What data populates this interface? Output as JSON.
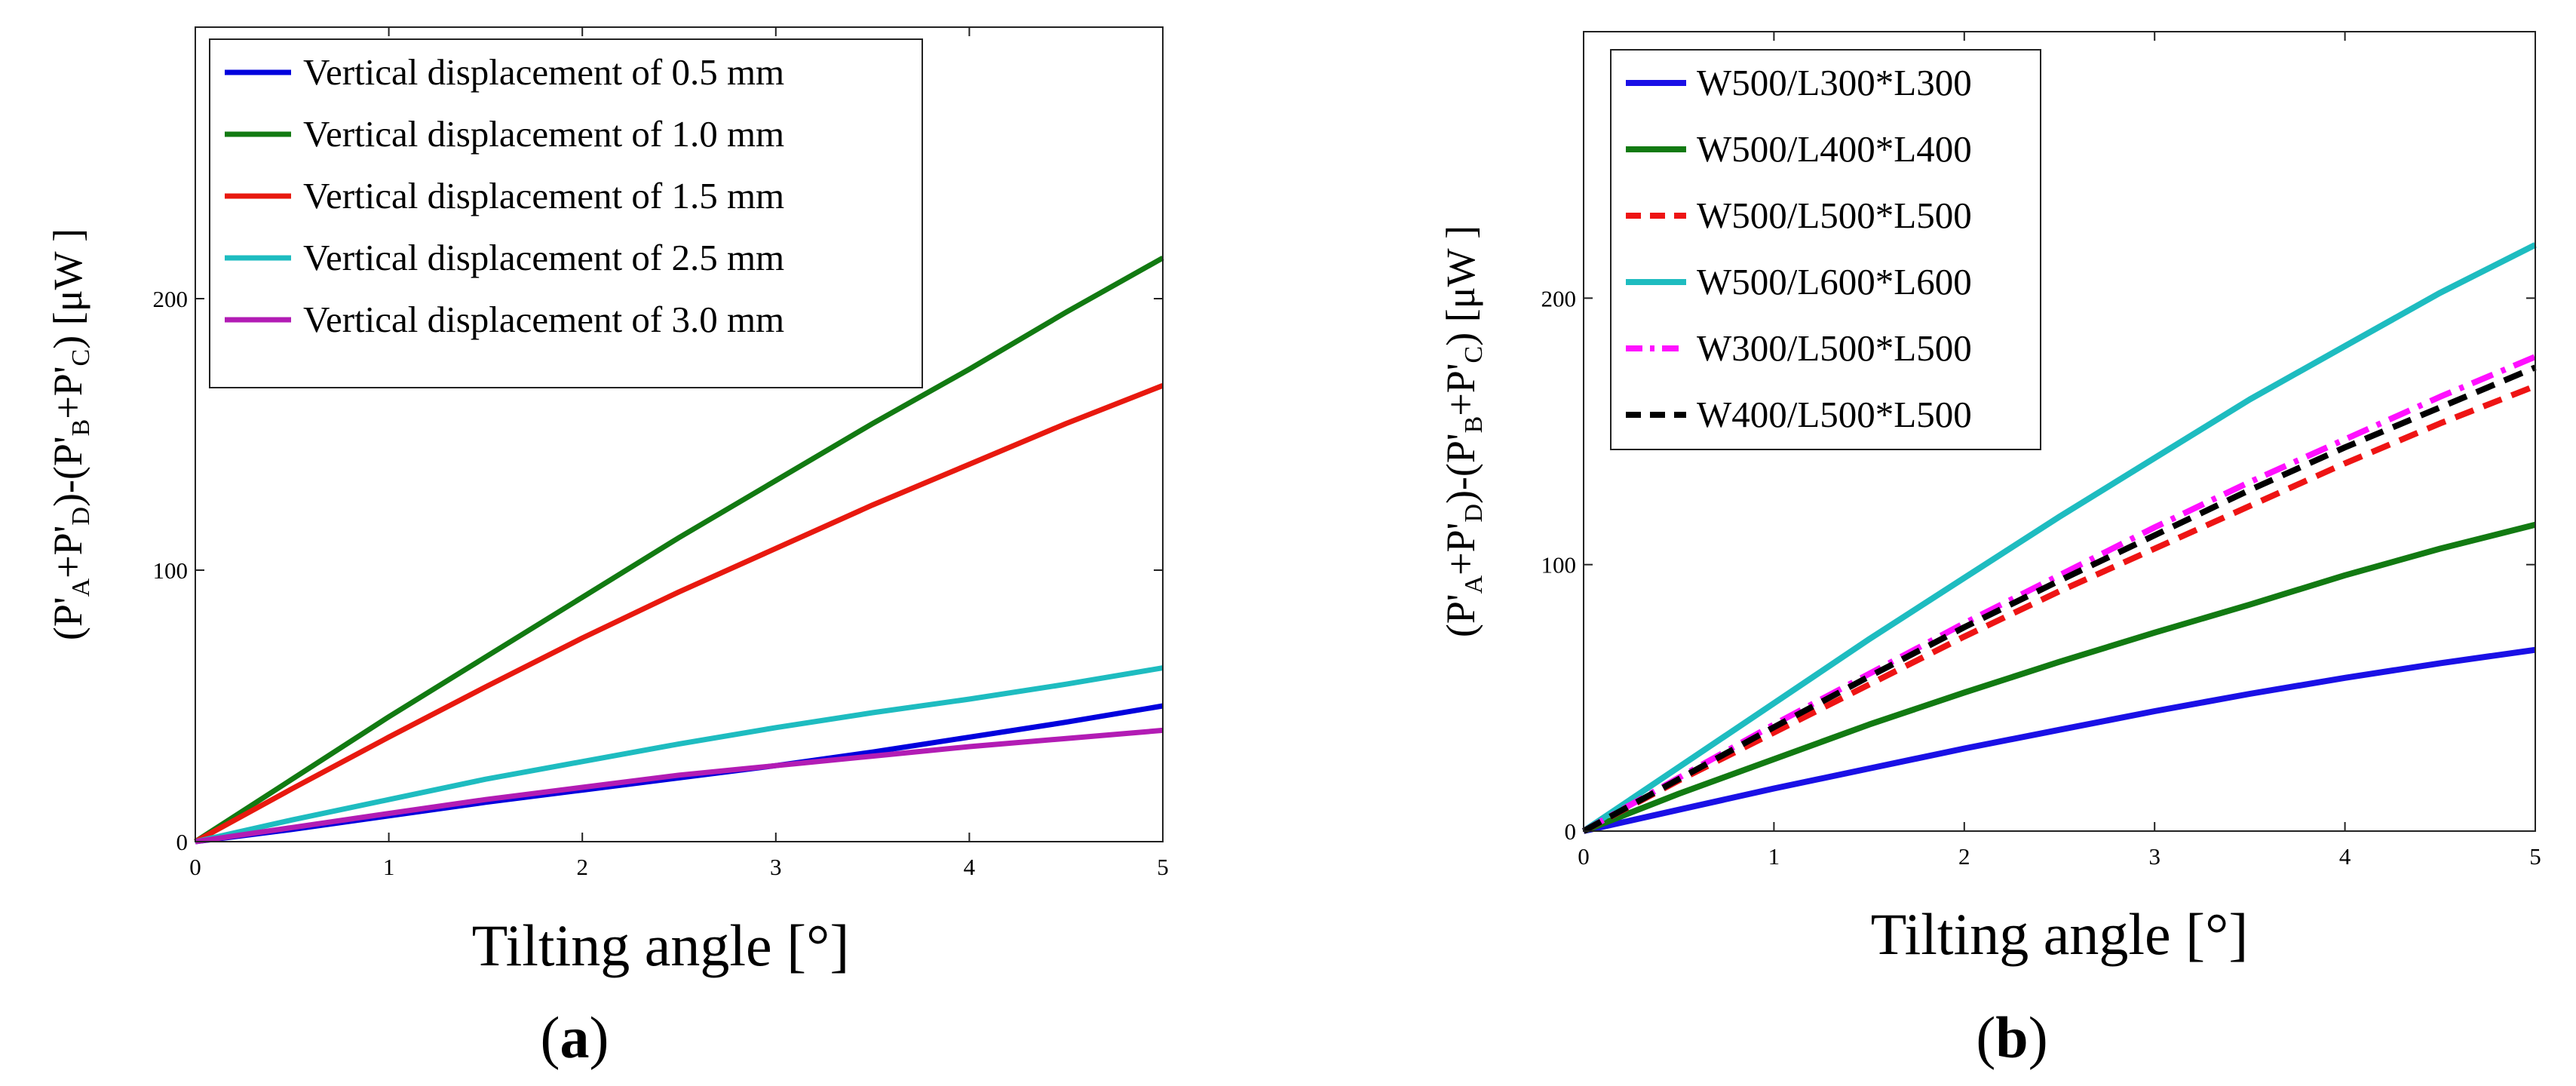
{
  "chart_data": [
    {
      "type": "line",
      "panel": "a",
      "xlabel": "Tilting angle [°]",
      "ylabel": {
        "open": "(P'",
        "a": "A",
        "p1": "+P'",
        "d": "D",
        "mid": ")-(P'",
        "b": "B",
        "p2": "+P'",
        "c": "C",
        "close": ") [μW ]"
      },
      "xlim": [
        0,
        5
      ],
      "ylim": [
        0,
        300
      ],
      "xticks": [
        "0",
        "1",
        "2",
        "3",
        "4",
        "5"
      ],
      "yticks": [
        {
          "value": 0,
          "label": "0"
        },
        {
          "value": 100,
          "label": "100"
        },
        {
          "value": 200,
          "label": "200"
        }
      ],
      "legend": "top-left",
      "series": [
        {
          "name": "Vertical displacement of 0.5 mm",
          "color": "#0000dd",
          "dash": "solid",
          "x": [
            0,
            0.5,
            1,
            1.5,
            2,
            2.5,
            3,
            3.5,
            4,
            4.5,
            5
          ],
          "y": [
            0,
            4.5,
            9.5,
            14.5,
            19,
            23.5,
            28,
            33,
            38.5,
            44,
            50
          ]
        },
        {
          "name": "Vertical displacement of 1.0 mm",
          "color": "#127a12",
          "dash": "solid",
          "x": [
            0,
            0.5,
            1,
            1.5,
            2,
            2.5,
            3,
            3.5,
            4,
            4.5,
            5
          ],
          "y": [
            0,
            23,
            46,
            68,
            90,
            112,
            133,
            154,
            174,
            195,
            215
          ]
        },
        {
          "name": "Vertical displacement of 1.5 mm",
          "color": "#e8190f",
          "dash": "solid",
          "x": [
            0,
            0.5,
            1,
            1.5,
            2,
            2.5,
            3,
            3.5,
            4,
            4.5,
            5
          ],
          "y": [
            0,
            19.5,
            38.5,
            57,
            75,
            92,
            108,
            124,
            139,
            154,
            168
          ]
        },
        {
          "name": "Vertical displacement of 2.5 mm",
          "color": "#1ebcc0",
          "dash": "solid",
          "x": [
            0,
            0.5,
            1,
            1.5,
            2,
            2.5,
            3,
            3.5,
            4,
            4.5,
            5
          ],
          "y": [
            0,
            8,
            15.5,
            23,
            29.5,
            36,
            42,
            47.5,
            52.5,
            58,
            64
          ]
        },
        {
          "name": "Vertical displacement of 3.0 mm",
          "color": "#b21cb4",
          "dash": "solid",
          "x": [
            0,
            0.5,
            1,
            1.5,
            2,
            2.5,
            3,
            3.5,
            4,
            4.5,
            5
          ],
          "y": [
            0,
            5.2,
            10.4,
            15.5,
            20,
            24.5,
            28,
            31.5,
            35,
            38,
            41
          ]
        }
      ],
      "caption": "a"
    },
    {
      "type": "line",
      "panel": "b",
      "xlabel": "Tilting angle [°]",
      "ylabel": {
        "open": "(P'",
        "a": "A",
        "p1": "+P'",
        "d": "D",
        "mid": ")-(P'",
        "b": "B",
        "p2": "+P'",
        "c": "C",
        "close": ") [μW ]"
      },
      "xlim": [
        0,
        5
      ],
      "ylim": [
        0,
        300
      ],
      "xticks": [
        "0",
        "1",
        "2",
        "3",
        "4",
        "5"
      ],
      "yticks": [
        {
          "value": 0,
          "label": "0"
        },
        {
          "value": 100,
          "label": "100"
        },
        {
          "value": 200,
          "label": "200"
        }
      ],
      "legend": "top-left",
      "series": [
        {
          "name": "W500/L300*L300",
          "color": "#1a10e6",
          "dash": "solid",
          "x": [
            0,
            0.5,
            1,
            1.5,
            2,
            2.5,
            3,
            3.5,
            4,
            4.5,
            5
          ],
          "y": [
            0,
            8,
            16,
            23.5,
            31,
            38,
            45,
            51.5,
            57.5,
            63,
            68
          ]
        },
        {
          "name": "W500/L400*L400",
          "color": "#127a12",
          "dash": "solid",
          "x": [
            0,
            0.5,
            1,
            1.5,
            2,
            2.5,
            3,
            3.5,
            4,
            4.5,
            5
          ],
          "y": [
            0,
            14,
            27,
            40,
            52,
            63.5,
            74.5,
            85,
            96,
            106,
            115
          ]
        },
        {
          "name": "W500/L500*L500",
          "color": "#ee1414",
          "dash": "dashed",
          "x": [
            0,
            0.5,
            1,
            1.5,
            2,
            2.5,
            3,
            3.5,
            4,
            4.5,
            5
          ],
          "y": [
            0,
            19,
            37,
            55,
            73,
            90,
            106,
            122,
            138,
            153,
            167
          ]
        },
        {
          "name": "W500/L600*L600",
          "color": "#1ebcc0",
          "dash": "solid",
          "x": [
            0,
            0.5,
            1,
            1.5,
            2,
            2.5,
            3,
            3.5,
            4,
            4.5,
            5
          ],
          "y": [
            0,
            24,
            48,
            72,
            95,
            118,
            140,
            162,
            182,
            202,
            220
          ]
        },
        {
          "name": "W300/L500*L500",
          "color": "#ff10ff",
          "dash": "dashdot",
          "x": [
            0,
            0.5,
            1,
            1.5,
            2,
            2.5,
            3,
            3.5,
            4,
            4.5,
            5
          ],
          "y": [
            0,
            20,
            40,
            59,
            78,
            96,
            114,
            131,
            147,
            163,
            178
          ]
        },
        {
          "name": "W400/L500*L500",
          "color": "#000000",
          "dash": "dashed",
          "x": [
            0,
            0.5,
            1,
            1.5,
            2,
            2.5,
            3,
            3.5,
            4,
            4.5,
            5
          ],
          "y": [
            0,
            19.5,
            39,
            58,
            76.5,
            94,
            111,
            128,
            144,
            159,
            174
          ]
        }
      ],
      "caption": "b"
    }
  ]
}
